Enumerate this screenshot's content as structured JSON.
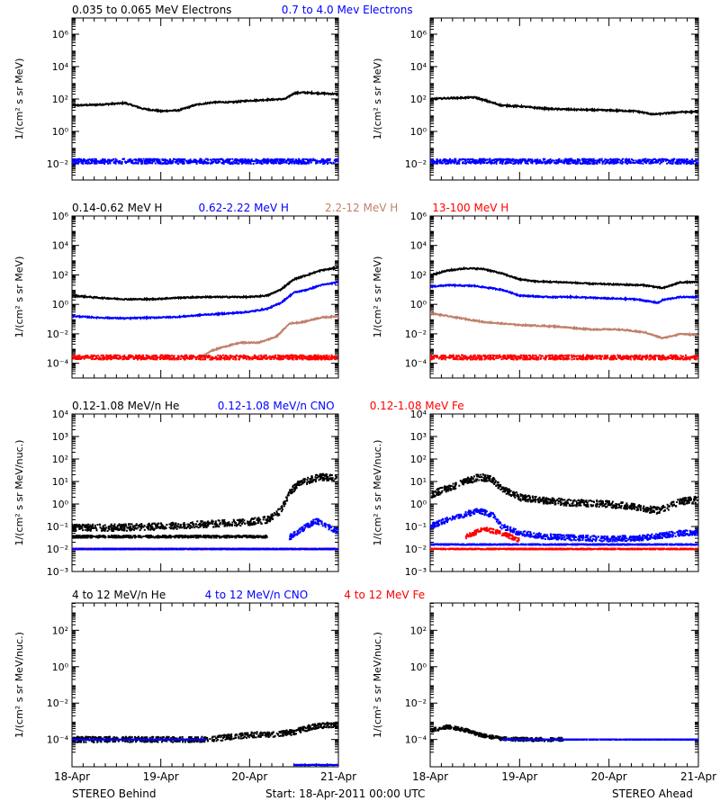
{
  "colors": {
    "black": "#000000",
    "blue": "#0000ff",
    "tan": "#c0806a",
    "red": "#ff0000"
  },
  "footer": {
    "left": "STEREO Behind",
    "center": "Start: 18-Apr-2011 00:00 UTC",
    "right": "STEREO Ahead"
  },
  "chart_data": [
    {
      "id": "electrons",
      "type": "scatter",
      "legend": [
        {
          "text": "0.035 to 0.065 MeV Electrons",
          "color": "#000000"
        },
        {
          "text": "0.7 to 4.0 Mev Electrons",
          "color": "#0000ff"
        }
      ],
      "ylabel": "1/(cm² s sr MeV)",
      "yscale": "log",
      "ylim_exp": [
        -3,
        7
      ],
      "yticks_exp": [
        -2,
        0,
        2,
        4,
        6
      ],
      "xlim_days": [
        0,
        3
      ],
      "xticks": [
        "18-Apr",
        "19-Apr",
        "20-Apr",
        "21-Apr"
      ],
      "panels": {
        "behind": [
          {
            "name": "0.035 to 0.065 MeV Electrons",
            "color": "#000000",
            "x": [
              0,
              0.3,
              0.6,
              0.8,
              1.0,
              1.2,
              1.4,
              1.6,
              1.8,
              2.0,
              2.2,
              2.4,
              2.5,
              2.6,
              2.8,
              3.0
            ],
            "log10": [
              1.6,
              1.65,
              1.75,
              1.4,
              1.25,
              1.3,
              1.65,
              1.8,
              1.8,
              1.9,
              1.95,
              2.0,
              2.35,
              2.4,
              2.35,
              2.3
            ],
            "style": "line"
          },
          {
            "name": "0.7 to 4.0 Mev Electrons",
            "color": "#0000ff",
            "x": [
              0,
              3
            ],
            "log10": [
              -1.85,
              -1.85
            ],
            "style": "scatter",
            "noise": 0.15
          }
        ],
        "ahead": [
          {
            "name": "0.035 to 0.065 MeV Electrons",
            "color": "#000000",
            "x": [
              0,
              0.2,
              0.5,
              0.8,
              1.0,
              1.3,
              1.6,
              2.0,
              2.3,
              2.5,
              2.8,
              3.0
            ],
            "log10": [
              2.0,
              2.05,
              2.1,
              1.6,
              1.55,
              1.4,
              1.35,
              1.3,
              1.25,
              1.05,
              1.2,
              1.2
            ],
            "style": "line"
          },
          {
            "name": "0.7 to 4.0 Mev Electrons",
            "color": "#0000ff",
            "x": [
              0,
              3
            ],
            "log10": [
              -1.85,
              -1.85
            ],
            "style": "scatter",
            "noise": 0.15
          }
        ]
      }
    },
    {
      "id": "protons",
      "type": "scatter",
      "legend": [
        {
          "text": "0.14-0.62 MeV H",
          "color": "#000000"
        },
        {
          "text": "0.62-2.22 MeV H",
          "color": "#0000ff"
        },
        {
          "text": "2.2-12 MeV H",
          "color": "#c0806a"
        },
        {
          "text": "13-100 MeV H",
          "color": "#ff0000"
        }
      ],
      "ylabel": "1/(cm² s sr MeV)",
      "yscale": "log",
      "ylim_exp": [
        -5,
        6
      ],
      "yticks_exp": [
        -4,
        -2,
        0,
        2,
        4,
        6
      ],
      "xlim_days": [
        0,
        3
      ],
      "xticks": [
        "18-Apr",
        "19-Apr",
        "20-Apr",
        "21-Apr"
      ],
      "panels": {
        "behind": [
          {
            "name": "0.14-0.62 MeV H",
            "color": "#000000",
            "x": [
              0,
              0.3,
              0.6,
              0.9,
              1.2,
              1.5,
              1.8,
              2.0,
              2.2,
              2.35,
              2.5,
              2.65,
              2.8,
              3.0
            ],
            "log10": [
              0.6,
              0.45,
              0.35,
              0.35,
              0.45,
              0.5,
              0.5,
              0.5,
              0.6,
              1.0,
              1.7,
              2.0,
              2.3,
              2.5
            ],
            "style": "line"
          },
          {
            "name": "0.62-2.22 MeV H",
            "color": "#0000ff",
            "x": [
              0,
              0.3,
              0.6,
              0.9,
              1.2,
              1.5,
              1.8,
              2.0,
              2.2,
              2.35,
              2.5,
              2.65,
              2.8,
              3.0
            ],
            "log10": [
              -0.8,
              -0.9,
              -0.95,
              -0.9,
              -0.85,
              -0.7,
              -0.6,
              -0.5,
              -0.3,
              0.1,
              0.8,
              1.0,
              1.3,
              1.5
            ],
            "style": "line"
          },
          {
            "name": "2.2-12 MeV H",
            "color": "#c0806a",
            "x": [
              1.45,
              1.55,
              1.7,
              1.9,
              2.1,
              2.3,
              2.45,
              2.6,
              2.8,
              3.0
            ],
            "log10": [
              -3.6,
              -3.2,
              -2.9,
              -2.6,
              -2.6,
              -2.2,
              -1.3,
              -1.2,
              -0.9,
              -0.8
            ],
            "style": "line"
          },
          {
            "name": "13-100 MeV H",
            "color": "#ff0000",
            "x": [
              0,
              3
            ],
            "log10": [
              -3.6,
              -3.6
            ],
            "style": "scatter",
            "noise": 0.15
          }
        ],
        "ahead": [
          {
            "name": "0.14-0.62 MeV H",
            "color": "#000000",
            "x": [
              0,
              0.2,
              0.4,
              0.6,
              0.8,
              1.0,
              1.2,
              1.5,
              1.8,
              2.1,
              2.4,
              2.6,
              2.8,
              3.0
            ],
            "log10": [
              2.0,
              2.3,
              2.45,
              2.4,
              2.1,
              1.7,
              1.55,
              1.5,
              1.4,
              1.35,
              1.3,
              1.1,
              1.5,
              1.5
            ],
            "style": "line"
          },
          {
            "name": "0.62-2.22 MeV H",
            "color": "#0000ff",
            "x": [
              0,
              0.2,
              0.5,
              0.8,
              1.0,
              1.3,
              1.6,
              2.0,
              2.3,
              2.55,
              2.6,
              2.8,
              3.0
            ],
            "log10": [
              1.2,
              1.3,
              1.25,
              1.0,
              0.6,
              0.5,
              0.5,
              0.4,
              0.35,
              0.1,
              0.3,
              0.5,
              0.5
            ],
            "style": "line"
          },
          {
            "name": "2.2-12 MeV H",
            "color": "#c0806a",
            "x": [
              0,
              0.3,
              0.6,
              1.0,
              1.4,
              1.8,
              2.1,
              2.4,
              2.6,
              2.8,
              3.0
            ],
            "log10": [
              -0.6,
              -0.9,
              -1.2,
              -1.4,
              -1.5,
              -1.7,
              -1.7,
              -1.9,
              -2.3,
              -2.0,
              -2.1
            ],
            "style": "line"
          },
          {
            "name": "13-100 MeV H",
            "color": "#ff0000",
            "x": [
              0,
              3
            ],
            "log10": [
              -3.6,
              -3.6
            ],
            "style": "scatter",
            "noise": 0.15
          }
        ]
      }
    },
    {
      "id": "suprathermal",
      "type": "scatter",
      "legend": [
        {
          "text": "0.12-1.08 MeV/n He",
          "color": "#000000"
        },
        {
          "text": "0.12-1.08 MeV/n CNO",
          "color": "#0000ff"
        },
        {
          "text": "0.12-1.08 MeV Fe",
          "color": "#ff0000"
        }
      ],
      "ylabel": "1/(cm² s sr MeV/nuc.)",
      "yscale": "log",
      "ylim_exp": [
        -3,
        4
      ],
      "yticks_exp": [
        -3,
        -2,
        -1,
        0,
        1,
        2,
        3,
        4
      ],
      "xlim_days": [
        0,
        3
      ],
      "xticks": [
        "18-Apr",
        "19-Apr",
        "20-Apr",
        "21-Apr"
      ],
      "panels": {
        "behind": [
          {
            "name": "0.12-1.08 MeV/n He",
            "color": "#000000",
            "x": [
              0,
              0.5,
              1.0,
              1.5,
              2.0,
              2.2,
              2.35,
              2.45,
              2.55,
              2.7,
              2.8,
              3.0
            ],
            "log10": [
              -1.05,
              -1.05,
              -1.0,
              -0.9,
              -0.8,
              -0.7,
              -0.3,
              0.5,
              0.9,
              1.1,
              1.2,
              1.15
            ],
            "style": "scatter",
            "noise": 0.15
          },
          {
            "name": "0.12-1.08 MeV/n He (low)",
            "color": "#000000",
            "x": [
              0,
              2.2
            ],
            "log10": [
              -1.45,
              -1.45
            ],
            "style": "scatter",
            "noise": 0.05
          },
          {
            "name": "0.12-1.08 MeV/n CNO",
            "color": "#0000ff",
            "x": [
              2.45,
              2.6,
              2.75,
              2.9,
              3.0
            ],
            "log10": [
              -1.5,
              -1.1,
              -0.75,
              -1.05,
              -1.2
            ],
            "style": "scatter",
            "noise": 0.12
          },
          {
            "name": "0.12-1.08 MeV Fe",
            "color": "#ff0000",
            "x": [
              0,
              3
            ],
            "log10": [
              -2.0,
              -2.0
            ],
            "style": "scatter",
            "noise": 0.02
          },
          {
            "name": "0.12-1.08 MeV/n CNO (floor)",
            "color": "#0000ff",
            "x": [
              0,
              3
            ],
            "log10": [
              -2.0,
              -2.0
            ],
            "style": "scatter",
            "noise": 0.02
          }
        ],
        "ahead": [
          {
            "name": "0.12-1.08 MeV/n He",
            "color": "#000000",
            "x": [
              0,
              0.2,
              0.4,
              0.55,
              0.7,
              0.8,
              1.0,
              1.3,
              1.6,
              2.0,
              2.3,
              2.55,
              2.8,
              3.0
            ],
            "log10": [
              0.4,
              0.7,
              1.0,
              1.2,
              1.1,
              0.7,
              0.3,
              0.15,
              0.05,
              0.0,
              -0.15,
              -0.3,
              0.1,
              0.2
            ],
            "style": "scatter",
            "noise": 0.15
          },
          {
            "name": "0.12-1.08 MeV/n CNO",
            "color": "#0000ff",
            "x": [
              0,
              0.2,
              0.4,
              0.55,
              0.7,
              0.8,
              1.0,
              1.3,
              1.6,
              2.0,
              2.4,
              2.8,
              3.0
            ],
            "log10": [
              -1.0,
              -0.7,
              -0.45,
              -0.3,
              -0.5,
              -1.0,
              -1.3,
              -1.45,
              -1.5,
              -1.55,
              -1.5,
              -1.3,
              -1.25
            ],
            "style": "scatter",
            "noise": 0.12
          },
          {
            "name": "0.12-1.08 MeV Fe",
            "color": "#ff0000",
            "x": [
              0.4,
              0.6,
              0.8,
              1.0
            ],
            "log10": [
              -1.45,
              -1.1,
              -1.3,
              -1.6
            ],
            "style": "scatter",
            "noise": 0.1
          },
          {
            "name": "0.12-1.08 MeV Fe (floor)",
            "color": "#ff0000",
            "x": [
              0,
              3
            ],
            "log10": [
              -2.0,
              -2.0
            ],
            "style": "scatter",
            "noise": 0.02
          },
          {
            "name": "0.12-1.08 MeV/n CNO (floor)",
            "color": "#0000ff",
            "x": [
              0,
              3
            ],
            "log10": [
              -1.8,
              -1.8
            ],
            "style": "scatter",
            "noise": 0.02
          }
        ]
      }
    },
    {
      "id": "energetic",
      "type": "scatter",
      "legend": [
        {
          "text": "4 to 12 MeV/n He",
          "color": "#000000"
        },
        {
          "text": "4 to 12 MeV/n CNO",
          "color": "#0000ff"
        },
        {
          "text": "4 to 12 MeV Fe",
          "color": "#ff0000"
        }
      ],
      "ylabel": "1/(cm² s sr MeV/nuc.)",
      "yscale": "log",
      "ylim_exp": [
        -5.5,
        3.5
      ],
      "yticks_exp": [
        -4,
        -2,
        0,
        2
      ],
      "xlim_days": [
        0,
        3
      ],
      "xticks": [
        "18-Apr",
        "19-Apr",
        "20-Apr",
        "21-Apr"
      ],
      "panels": {
        "behind": [
          {
            "name": "4 to 12 MeV/n He",
            "color": "#000000",
            "x": [
              0,
              1.5,
              2.0,
              2.3,
              2.5,
              2.7,
              2.9,
              3.0
            ],
            "log10": [
              -4.0,
              -4.0,
              -3.75,
              -3.7,
              -3.6,
              -3.3,
              -3.2,
              -3.2
            ],
            "style": "scatter",
            "noise": 0.15
          },
          {
            "name": "4 to 12 MeV/n CNO",
            "color": "#0000ff",
            "x": [
              0,
              1.5
            ],
            "log10": [
              -4.0,
              -4.0
            ],
            "style": "scatter",
            "noise": 0.01
          },
          {
            "name": "4 to 12 MeV Fe",
            "color": "#0000ff",
            "x": [
              2.5,
              3.0
            ],
            "log10": [
              -5.4,
              -5.4
            ],
            "style": "scatter",
            "noise": 0.01
          }
        ],
        "ahead": [
          {
            "name": "4 to 12 MeV/n He",
            "color": "#000000",
            "x": [
              0,
              0.2,
              0.4,
              0.6,
              0.8,
              1.0,
              1.5
            ],
            "log10": [
              -3.5,
              -3.3,
              -3.5,
              -3.8,
              -3.95,
              -4.0,
              -4.0
            ],
            "style": "scatter",
            "noise": 0.1
          },
          {
            "name": "4 to 12 MeV/n CNO",
            "color": "#0000ff",
            "x": [
              0.8,
              3.0
            ],
            "log10": [
              -4.0,
              -4.0
            ],
            "style": "scatter",
            "noise": 0.01
          }
        ]
      }
    }
  ]
}
